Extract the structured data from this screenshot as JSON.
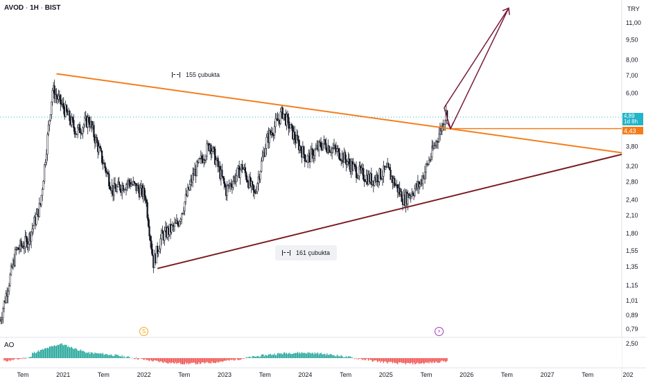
{
  "header": {
    "symbol": "AVOD",
    "interval": "1H",
    "exchange": "BIST",
    "separator": "·",
    "currency": "TRY"
  },
  "annotations": {
    "bars_top": "155 çubukta",
    "bars_bottom": "161 çubukta"
  },
  "price_tags": {
    "last_price": "4,89",
    "countdown": "1d 8h",
    "line_price": "4,43"
  },
  "events": {
    "dividend": "S",
    "earnings": "⚡"
  },
  "indicator": {
    "name": "AO",
    "scale_label": "2,50"
  },
  "colors": {
    "up": "#131722",
    "down": "#131722",
    "triangle_upper": "#f47d1b",
    "triangle_lower": "#7a1a22",
    "arrow": "#7a1a3a",
    "ao_up": "#26a69a",
    "ao_down": "#ef5350"
  },
  "chart_data": {
    "type": "candlestick",
    "price_axis": {
      "scale": "log",
      "ticks": [
        "11,00",
        "9,50",
        "8,00",
        "7,00",
        "6,00",
        "4,89",
        "3,80",
        "3,20",
        "2,80",
        "2,40",
        "2,10",
        "1,80",
        "1,55",
        "1,35",
        "1,15",
        "1,01",
        "0,89",
        "0,79"
      ]
    },
    "time_axis": [
      "Tem",
      "2021",
      "Tem",
      "2022",
      "Tem",
      "2023",
      "Tem",
      "2024",
      "Tem",
      "2025",
      "Tem",
      "2026",
      "Tem",
      "2027",
      "Tem",
      "202"
    ],
    "close_path": [
      {
        "t": 2020.2,
        "v": 0.85
      },
      {
        "t": 2020.4,
        "v": 1.55
      },
      {
        "t": 2020.55,
        "v": 1.7
      },
      {
        "t": 2020.7,
        "v": 2.3
      },
      {
        "t": 2020.85,
        "v": 6.2
      },
      {
        "t": 2021.0,
        "v": 5.2
      },
      {
        "t": 2021.15,
        "v": 4.3
      },
      {
        "t": 2021.3,
        "v": 4.8
      },
      {
        "t": 2021.45,
        "v": 3.5
      },
      {
        "t": 2021.6,
        "v": 2.6
      },
      {
        "t": 2021.8,
        "v": 2.8
      },
      {
        "t": 2022.0,
        "v": 2.5
      },
      {
        "t": 2022.1,
        "v": 1.4
      },
      {
        "t": 2022.2,
        "v": 1.75
      },
      {
        "t": 2022.4,
        "v": 1.95
      },
      {
        "t": 2022.6,
        "v": 3.0
      },
      {
        "t": 2022.8,
        "v": 3.9
      },
      {
        "t": 2023.0,
        "v": 2.6
      },
      {
        "t": 2023.2,
        "v": 3.2
      },
      {
        "t": 2023.35,
        "v": 2.5
      },
      {
        "t": 2023.5,
        "v": 4.0
      },
      {
        "t": 2023.7,
        "v": 5.1
      },
      {
        "t": 2023.85,
        "v": 4.1
      },
      {
        "t": 2024.0,
        "v": 3.4
      },
      {
        "t": 2024.2,
        "v": 3.9
      },
      {
        "t": 2024.4,
        "v": 3.6
      },
      {
        "t": 2024.6,
        "v": 3.1
      },
      {
        "t": 2024.8,
        "v": 2.85
      },
      {
        "t": 2025.0,
        "v": 3.1
      },
      {
        "t": 2025.2,
        "v": 2.4
      },
      {
        "t": 2025.4,
        "v": 2.75
      },
      {
        "t": 2025.55,
        "v": 3.6
      },
      {
        "t": 2025.68,
        "v": 4.6
      },
      {
        "t": 2025.75,
        "v": 5.3
      }
    ],
    "trendline_upper": [
      {
        "t": 2020.9,
        "v": 7.1
      },
      {
        "t": 2027.9,
        "v": 3.6
      }
    ],
    "trendline_lower": [
      {
        "t": 2022.15,
        "v": 1.33
      },
      {
        "t": 2027.9,
        "v": 3.55
      }
    ],
    "horizontal_level": 4.43,
    "projection_arrow": [
      {
        "t": 2025.78,
        "v": 4.43
      },
      {
        "t": 2025.7,
        "v": 5.3
      },
      {
        "t": 2026.5,
        "v": 12.5
      }
    ],
    "ao_series": "oscillator histogram"
  }
}
